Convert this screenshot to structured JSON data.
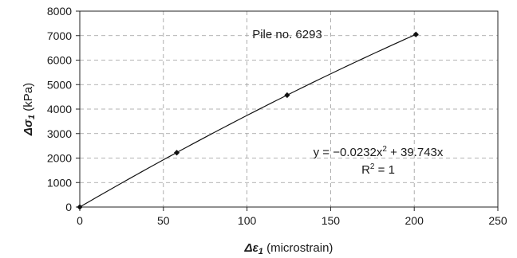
{
  "chart_data": {
    "type": "scatter",
    "title": "",
    "xlabel": {
      "symbol": "Δε",
      "sub": "1",
      "text": " (microstrain)"
    },
    "ylabel": {
      "symbol": "Δσ",
      "sub": "1",
      "text": " (kPa)"
    },
    "xlim": [
      0,
      250
    ],
    "ylim": [
      0,
      8000
    ],
    "xticks": [
      0,
      50,
      100,
      150,
      200,
      250
    ],
    "yticks": [
      0,
      1000,
      2000,
      3000,
      4000,
      5000,
      6000,
      7000,
      8000
    ],
    "grid": true,
    "series": [
      {
        "x": [
          0,
          58,
          124,
          201
        ],
        "y": [
          0,
          2220,
          4570,
          7050
        ],
        "marker": "diamond"
      }
    ],
    "fit": {
      "a": -0.0232,
      "b": 39.743,
      "equation": "y = −0.0232x",
      "equation_sup": "2",
      "equation_tail": " + 39.743x",
      "r2_label": "R",
      "r2_sup": "2",
      "r2_tail": " = 1"
    },
    "annotation": "Pile no. 6293"
  }
}
